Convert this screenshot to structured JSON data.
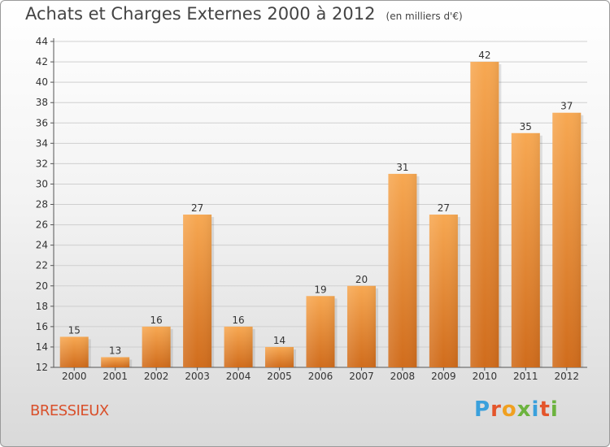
{
  "header": {
    "title": "Achats et Charges Externes 2000 à 2012",
    "subtitle": "(en milliers d'€)"
  },
  "footer": {
    "commune": "BRESSIEUX",
    "logo_text": "Proxiti"
  },
  "colors": {
    "bar_light": "#f6a650",
    "bar_dark": "#d26f1e",
    "commune": "#d9502b",
    "logo": [
      "#3aa0dc",
      "#e4552b",
      "#f0a020",
      "#6cb33e",
      "#3aa0dc",
      "#e4552b",
      "#6cb33e"
    ]
  },
  "chart_data": {
    "type": "bar",
    "title": "Achats et Charges Externes 2000 à 2012",
    "subtitle": "(en milliers d'€)",
    "categories": [
      "2000",
      "2001",
      "2002",
      "2003",
      "2004",
      "2005",
      "2006",
      "2007",
      "2008",
      "2009",
      "2010",
      "2011",
      "2012"
    ],
    "values": [
      15,
      13,
      16,
      27,
      16,
      14,
      19,
      20,
      31,
      27,
      42,
      35,
      37
    ],
    "data_labels": [
      "15",
      "13",
      "16",
      "27",
      "16",
      "14",
      "19",
      "20",
      "31",
      "27",
      "42",
      "35",
      "37"
    ],
    "ylim": [
      12,
      44
    ],
    "yticks": [
      "12",
      "14",
      "16",
      "18",
      "20",
      "22",
      "24",
      "26",
      "28",
      "30",
      "32",
      "34",
      "36",
      "38",
      "40",
      "42",
      "44"
    ],
    "grid": true
  }
}
